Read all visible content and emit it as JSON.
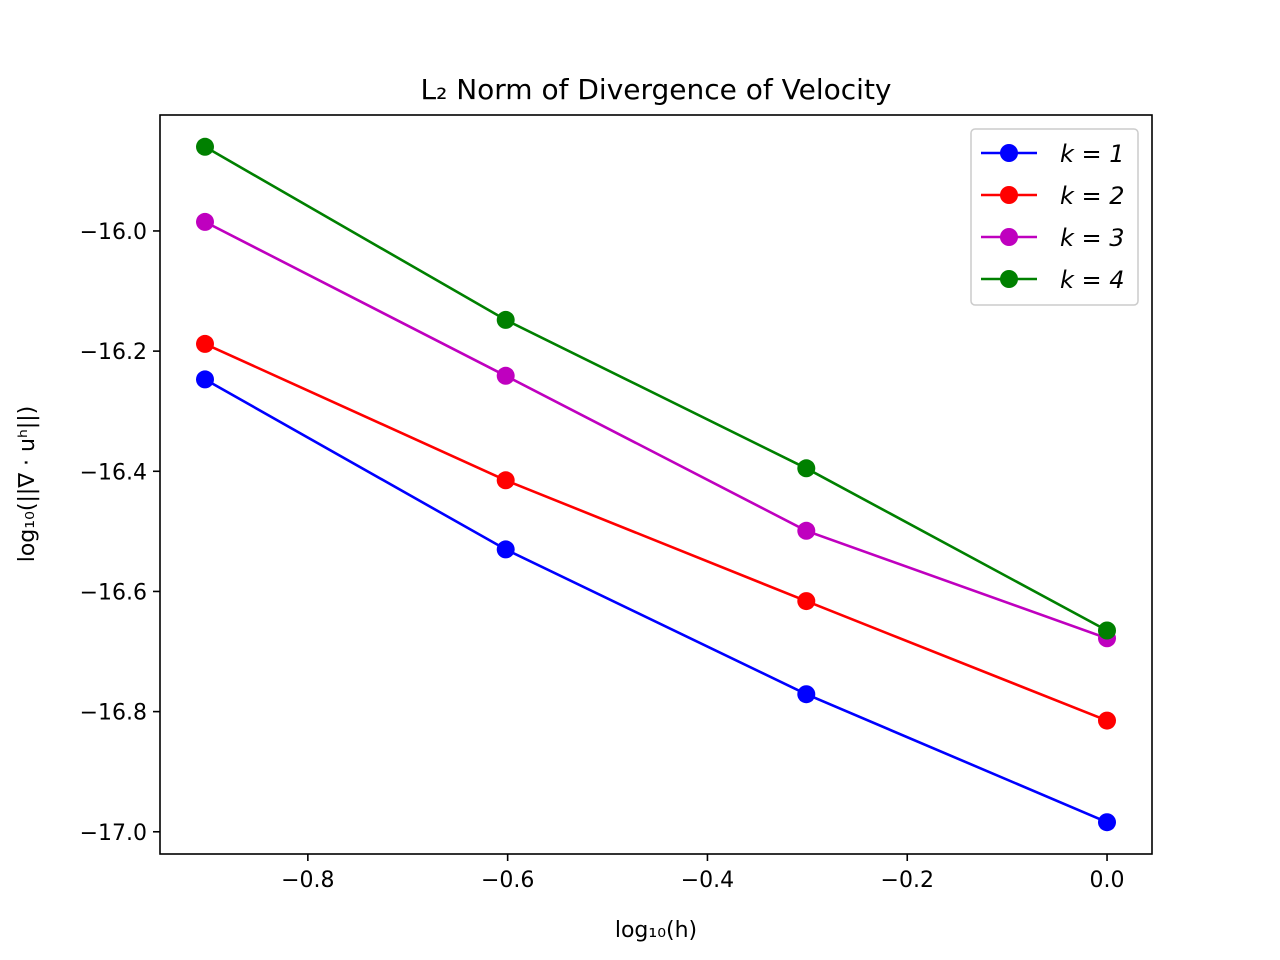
{
  "chart_data": {
    "type": "line",
    "title": "L₂ Norm of Divergence of Velocity",
    "xlabel": "log₁₀(h)",
    "ylabel": "log₁₀(||∇ · uʰ||)",
    "x": [
      -0.903,
      -0.602,
      -0.301,
      0.0
    ],
    "xlim": [
      -0.948,
      0.045
    ],
    "ylim": [
      -17.037,
      -15.807
    ],
    "xticks": [
      -0.8,
      -0.6,
      -0.4,
      -0.2,
      0.0
    ],
    "yticks": [
      -16.0,
      -16.2,
      -16.4,
      -16.6,
      -16.8,
      -17.0
    ],
    "xtick_labels": [
      "−0.8",
      "−0.6",
      "−0.4",
      "−0.2",
      "0.0"
    ],
    "ytick_labels": [
      "−16.0",
      "−16.2",
      "−16.4",
      "−16.6",
      "−16.8",
      "−17.0"
    ],
    "grid": false,
    "legend_position": "top-right",
    "series": [
      {
        "name": "k = 1",
        "color": "#0000ff",
        "values": [
          -16.247,
          -16.53,
          -16.771,
          -16.984
        ]
      },
      {
        "name": "k = 2",
        "color": "#ff0000",
        "values": [
          -16.188,
          -16.415,
          -16.616,
          -16.815
        ]
      },
      {
        "name": "k = 3",
        "color": "#bf00bf",
        "values": [
          -15.985,
          -16.241,
          -16.499,
          -16.678
        ]
      },
      {
        "name": "k = 4",
        "color": "#008000",
        "values": [
          -15.86,
          -16.148,
          -16.395,
          -16.665
        ]
      }
    ]
  }
}
